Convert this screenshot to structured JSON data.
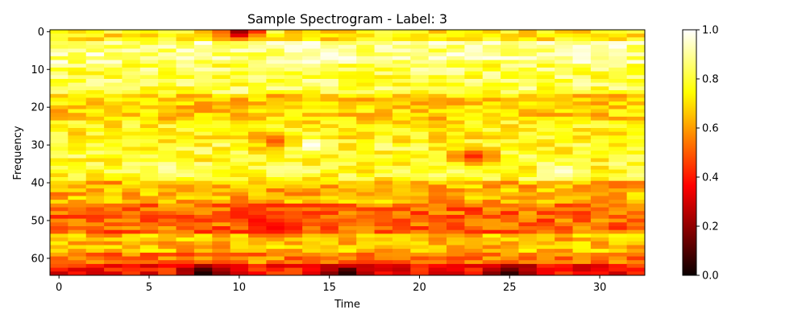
{
  "chart_data": {
    "type": "heatmap",
    "title": "Sample Spectrogram - Label: 3",
    "xlabel": "Time",
    "ylabel": "Frequency",
    "colormap": "hot",
    "x_ticks": [
      "0",
      "5",
      "10",
      "15",
      "20",
      "25",
      "30"
    ],
    "y_ticks": [
      "0",
      "10",
      "20",
      "30",
      "40",
      "50",
      "60"
    ],
    "colorbar_ticks": [
      "0.0",
      "0.2",
      "0.4",
      "0.6",
      "0.8",
      "1.0"
    ],
    "xlim": [
      -0.5,
      32.5
    ],
    "ylim": [
      64.5,
      -0.5
    ],
    "clim": [
      0.0,
      1.0
    ],
    "n_time": 33,
    "n_freq": 65,
    "freq_bands": [
      {
        "from": 0,
        "to": 2,
        "value": 0.73
      },
      {
        "from": 3,
        "to": 8,
        "value": 0.88
      },
      {
        "from": 9,
        "to": 16,
        "value": 0.82
      },
      {
        "from": 17,
        "to": 23,
        "value": 0.68
      },
      {
        "from": 24,
        "to": 29,
        "value": 0.74
      },
      {
        "from": 30,
        "to": 39,
        "value": 0.78
      },
      {
        "from": 40,
        "to": 45,
        "value": 0.63
      },
      {
        "from": 46,
        "to": 53,
        "value": 0.52
      },
      {
        "from": 54,
        "to": 58,
        "value": 0.65
      },
      {
        "from": 59,
        "to": 61,
        "value": 0.55
      },
      {
        "from": 62,
        "to": 64,
        "value": 0.38
      }
    ],
    "hotspots": [
      {
        "time": 15,
        "freq": 6,
        "value": 0.98
      },
      {
        "time": 29,
        "freq": 6,
        "value": 0.97
      },
      {
        "time": 14,
        "freq": 30,
        "value": 0.99
      },
      {
        "time": 28,
        "freq": 37,
        "value": 0.96
      },
      {
        "time": 6,
        "freq": 36,
        "value": 0.92
      },
      {
        "time": 10,
        "freq": 0,
        "value": 0.22
      },
      {
        "time": 8,
        "freq": 64,
        "value": 0.03
      },
      {
        "time": 16,
        "freq": 64,
        "value": 0.05
      },
      {
        "time": 25,
        "freq": 64,
        "value": 0.06
      },
      {
        "time": 11,
        "freq": 50,
        "value": 0.38
      },
      {
        "time": 12,
        "freq": 52,
        "value": 0.36
      },
      {
        "time": 23,
        "freq": 33,
        "value": 0.42
      },
      {
        "time": 12,
        "freq": 29,
        "value": 0.5
      }
    ],
    "seed": 7
  }
}
